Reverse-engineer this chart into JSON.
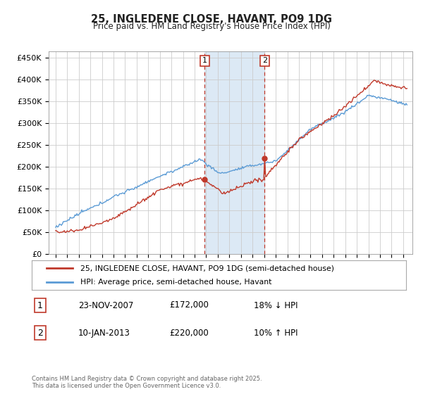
{
  "title": "25, INGLEDENE CLOSE, HAVANT, PO9 1DG",
  "subtitle": "Price paid vs. HM Land Registry's House Price Index (HPI)",
  "yticks": [
    0,
    50000,
    100000,
    150000,
    200000,
    250000,
    300000,
    350000,
    400000,
    450000
  ],
  "ytick_labels": [
    "£0",
    "£50K",
    "£100K",
    "£150K",
    "£200K",
    "£250K",
    "£300K",
    "£350K",
    "£400K",
    "£450K"
  ],
  "hpi_color": "#5b9bd5",
  "price_color": "#c0392b",
  "marker1_year": 2007.9,
  "marker2_year": 2013.04,
  "marker1_price": 172000,
  "marker2_price": 220000,
  "legend_label1": "25, INGLEDENE CLOSE, HAVANT, PO9 1DG (semi-detached house)",
  "legend_label2": "HPI: Average price, semi-detached house, Havant",
  "table_rows": [
    [
      "1",
      "23-NOV-2007",
      "£172,000",
      "18% ↓ HPI"
    ],
    [
      "2",
      "10-JAN-2013",
      "£220,000",
      "10% ↑ HPI"
    ]
  ],
  "footnote": "Contains HM Land Registry data © Crown copyright and database right 2025.\nThis data is licensed under the Open Government Licence v3.0.",
  "background_color": "#ffffff",
  "grid_color": "#cccccc",
  "shaded_color": "#dce9f5"
}
